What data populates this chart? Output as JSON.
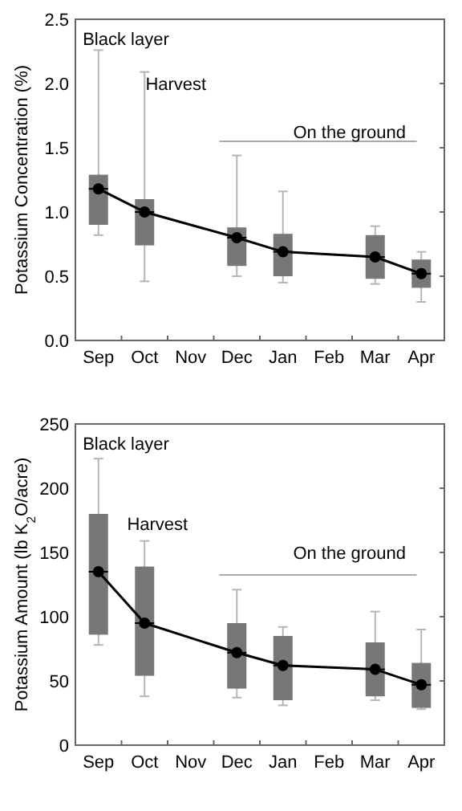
{
  "chart_data": [
    {
      "type": "box",
      "ylabel": "Potassium Concentration (%)",
      "categories": [
        "Sep",
        "Oct",
        "Nov",
        "Dec",
        "Jan",
        "Feb",
        "Mar",
        "Apr"
      ],
      "color": "#777777",
      "boxes": [
        {
          "low": 0.82,
          "q1": 0.9,
          "median": 1.18,
          "q3": 1.29,
          "high": 2.26
        },
        {
          "low": 0.46,
          "q1": 0.74,
          "median": 1.0,
          "q3": 1.1,
          "high": 2.09
        },
        null,
        {
          "low": 0.5,
          "q1": 0.58,
          "median": 0.8,
          "q3": 0.88,
          "high": 1.44
        },
        {
          "low": 0.45,
          "q1": 0.5,
          "median": 0.69,
          "q3": 0.83,
          "high": 1.16
        },
        null,
        {
          "low": 0.44,
          "q1": 0.48,
          "median": 0.65,
          "q3": 0.82,
          "high": 0.89
        },
        {
          "low": 0.3,
          "q1": 0.41,
          "median": 0.52,
          "q3": 0.63,
          "high": 0.69
        }
      ],
      "ylim": [
        0,
        2.5
      ],
      "yticks": [
        {
          "value": 0,
          "label": "0.0"
        },
        {
          "value": 0.5,
          "label": "0.5"
        },
        {
          "value": 1,
          "label": "1.0"
        },
        {
          "value": 1.5,
          "label": "1.5"
        },
        {
          "value": 2,
          "label": "2.0"
        },
        {
          "value": 2.5,
          "label": "2.5"
        }
      ],
      "series": [
        {
          "type": "line",
          "color": "#000000",
          "values": [
            1.18,
            1.0,
            null,
            0.8,
            0.69,
            null,
            0.65,
            0.52
          ],
          "marker": "circle"
        }
      ],
      "annotations": [
        "Black layer",
        "Harvest",
        "On the ground"
      ],
      "grid": false
    },
    {
      "type": "box",
      "ylabel": "Potassium Amount (lb K$_{2}$O/acre)",
      "categories": [
        "Sep",
        "Oct",
        "Nov",
        "Dec",
        "Jan",
        "Feb",
        "Mar",
        "Apr"
      ],
      "color": "#777777",
      "boxes": [
        {
          "low": 78,
          "q1": 86,
          "median": 135,
          "q3": 180,
          "high": 223
        },
        {
          "low": 38,
          "q1": 54,
          "median": 95,
          "q3": 139,
          "high": 159
        },
        null,
        {
          "low": 37,
          "q1": 44,
          "median": 72,
          "q3": 95,
          "high": 121
        },
        {
          "low": 31,
          "q1": 35,
          "median": 62,
          "q3": 85,
          "high": 92
        },
        null,
        {
          "low": 35,
          "q1": 38,
          "median": 59,
          "q3": 80,
          "high": 104
        },
        {
          "low": 28,
          "q1": 29,
          "median": 47,
          "q3": 64,
          "high": 90
        }
      ],
      "ylim": [
        0,
        250
      ],
      "yticks": [
        0,
        50,
        100,
        150,
        200,
        250
      ],
      "series": [
        {
          "type": "line",
          "color": "#000000",
          "values": [
            135,
            95,
            null,
            72,
            62,
            null,
            59,
            47
          ],
          "marker": "circle"
        }
      ],
      "annotations": [
        "Black layer",
        "Harvest",
        "On the ground"
      ],
      "grid": false
    }
  ]
}
